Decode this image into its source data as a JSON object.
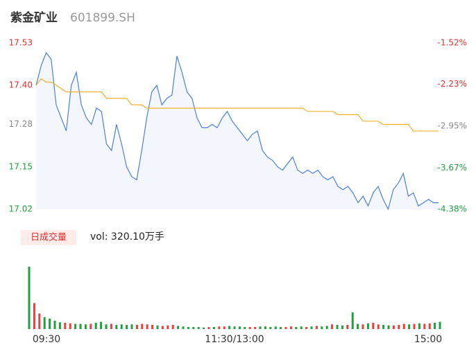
{
  "chart_data": [
    {
      "type": "line",
      "title": "紫金矿业",
      "subtitle": "601899.SH",
      "x": [
        0,
        3,
        6,
        9,
        12,
        15,
        18,
        21,
        24,
        27,
        30,
        33,
        36,
        39,
        42,
        45,
        48,
        51,
        54,
        57,
        60,
        63,
        66,
        69,
        72,
        75,
        78,
        81,
        84,
        87,
        90,
        93,
        96,
        99,
        102,
        105,
        108,
        111,
        114,
        117,
        120,
        123,
        126,
        129,
        132,
        135,
        138,
        141,
        144,
        147,
        150,
        153,
        156,
        159,
        162,
        165,
        168,
        171,
        174,
        177,
        180,
        183,
        186,
        189,
        192,
        195,
        198,
        201,
        204,
        207,
        210,
        213,
        216,
        219,
        222,
        225,
        228,
        231,
        234,
        237,
        240
      ],
      "xlim": [
        0,
        240
      ],
      "series": [
        {
          "name": "price",
          "color": "#4a7fe0",
          "values": [
            17.4,
            17.46,
            17.5,
            17.48,
            17.34,
            17.3,
            17.26,
            17.4,
            17.44,
            17.34,
            17.3,
            17.28,
            17.33,
            17.32,
            17.22,
            17.2,
            17.28,
            17.22,
            17.15,
            17.12,
            17.11,
            17.2,
            17.3,
            17.38,
            17.4,
            17.34,
            17.36,
            17.37,
            17.49,
            17.44,
            17.38,
            17.36,
            17.3,
            17.27,
            17.27,
            17.28,
            17.27,
            17.3,
            17.32,
            17.29,
            17.27,
            17.25,
            17.23,
            17.25,
            17.26,
            17.2,
            17.18,
            17.17,
            17.15,
            17.14,
            17.16,
            17.18,
            17.14,
            17.13,
            17.14,
            17.13,
            17.14,
            17.12,
            17.11,
            17.12,
            17.09,
            17.08,
            17.09,
            17.07,
            17.04,
            17.06,
            17.03,
            17.07,
            17.09,
            17.05,
            17.02,
            17.08,
            17.1,
            17.13,
            17.06,
            17.07,
            17.03,
            17.04,
            17.05,
            17.04,
            17.04
          ]
        },
        {
          "name": "average",
          "color": "#f0b030",
          "values": [
            17.4,
            17.42,
            17.41,
            17.41,
            17.4,
            17.39,
            17.38,
            17.38,
            17.38,
            17.38,
            17.38,
            17.38,
            17.38,
            17.38,
            17.36,
            17.36,
            17.36,
            17.36,
            17.36,
            17.34,
            17.34,
            17.34,
            17.33,
            17.33,
            17.33,
            17.33,
            17.33,
            17.33,
            17.33,
            17.33,
            17.33,
            17.33,
            17.33,
            17.33,
            17.33,
            17.33,
            17.33,
            17.33,
            17.33,
            17.33,
            17.33,
            17.33,
            17.33,
            17.33,
            17.33,
            17.33,
            17.33,
            17.33,
            17.33,
            17.33,
            17.33,
            17.33,
            17.33,
            17.33,
            17.32,
            17.32,
            17.32,
            17.32,
            17.32,
            17.32,
            17.31,
            17.31,
            17.31,
            17.31,
            17.31,
            17.29,
            17.29,
            17.29,
            17.29,
            17.28,
            17.28,
            17.28,
            17.28,
            17.28,
            17.28,
            17.26,
            17.26,
            17.26,
            17.26,
            17.26,
            17.26
          ]
        }
      ],
      "ylim": [
        17.02,
        17.53
      ],
      "yticks": [
        17.53,
        {
          "value": 17.4,
          "label": "17.40"
        },
        17.28,
        17.15,
        17.02
      ],
      "ytick_colors": [
        "#e03030",
        "#e03030",
        "#888888",
        "#20a040",
        "#20a040"
      ],
      "y2lim": [
        -4.38,
        -1.52
      ],
      "y2ticks": [
        {
          "value": -1.52,
          "label": "-1.52%"
        },
        {
          "value": -2.23,
          "label": "-2.23%"
        },
        {
          "value": -2.95,
          "label": "-2.95%"
        },
        {
          "value": -3.67,
          "label": "-3.67%"
        },
        {
          "value": -4.38,
          "label": "-4.38%"
        }
      ],
      "area_color": "#f3f6fd"
    },
    {
      "type": "bar",
      "title": "日成交量",
      "annotation": "vol: 320.10万手",
      "x": [
        0,
        3,
        6,
        9,
        12,
        15,
        18,
        21,
        24,
        27,
        30,
        33,
        36,
        39,
        42,
        45,
        48,
        51,
        54,
        57,
        60,
        63,
        66,
        69,
        72,
        75,
        78,
        81,
        84,
        87,
        90,
        93,
        96,
        99,
        102,
        105,
        108,
        111,
        114,
        117,
        120,
        123,
        126,
        129,
        132,
        135,
        138,
        141,
        144,
        147,
        150,
        153,
        156,
        159,
        162,
        165,
        168,
        171,
        174,
        177,
        180,
        183,
        186,
        189,
        192,
        195,
        198,
        201,
        204,
        207,
        210,
        213,
        216,
        219,
        222,
        225,
        228,
        231,
        234,
        237,
        240
      ],
      "xlim": [
        0,
        240
      ],
      "xticks": [
        {
          "value": 0,
          "label": "09:30"
        },
        {
          "value": 120,
          "label": "11:30/13:00"
        },
        {
          "value": 240,
          "label": "15:00"
        }
      ],
      "values": [
        12,
        5,
        3,
        2.3,
        2.0,
        1.6,
        1.3,
        1.2,
        1.1,
        1.0,
        1.0,
        0.9,
        1.0,
        1.2,
        1.4,
        0.9,
        1.0,
        0.8,
        0.9,
        0.8,
        0.9,
        0.8,
        1.0,
        0.9,
        0.8,
        0.7,
        0.6,
        0.7,
        0.8,
        0.6,
        0.5,
        0.4,
        0.4,
        0.4,
        0.3,
        0.4,
        0.4,
        0.5,
        0.5,
        0.6,
        0.5,
        0.5,
        0.4,
        0.4,
        0.4,
        0.5,
        0.5,
        0.4,
        0.5,
        0.4,
        0.4,
        0.5,
        0.4,
        0.5,
        0.4,
        0.5,
        0.6,
        0.5,
        0.6,
        0.9,
        0.8,
        0.7,
        0.8,
        3.2,
        1.0,
        0.9,
        1.1,
        1.2,
        0.9,
        0.8,
        0.7,
        0.7,
        0.8,
        1.0,
        0.9,
        1.0,
        1.1,
        1.0,
        1.1,
        1.2,
        1.4
      ],
      "up_color": "#e84040",
      "down_color": "#20a040",
      "title_bg": "#fdecea",
      "title_color": "#e03030"
    }
  ]
}
